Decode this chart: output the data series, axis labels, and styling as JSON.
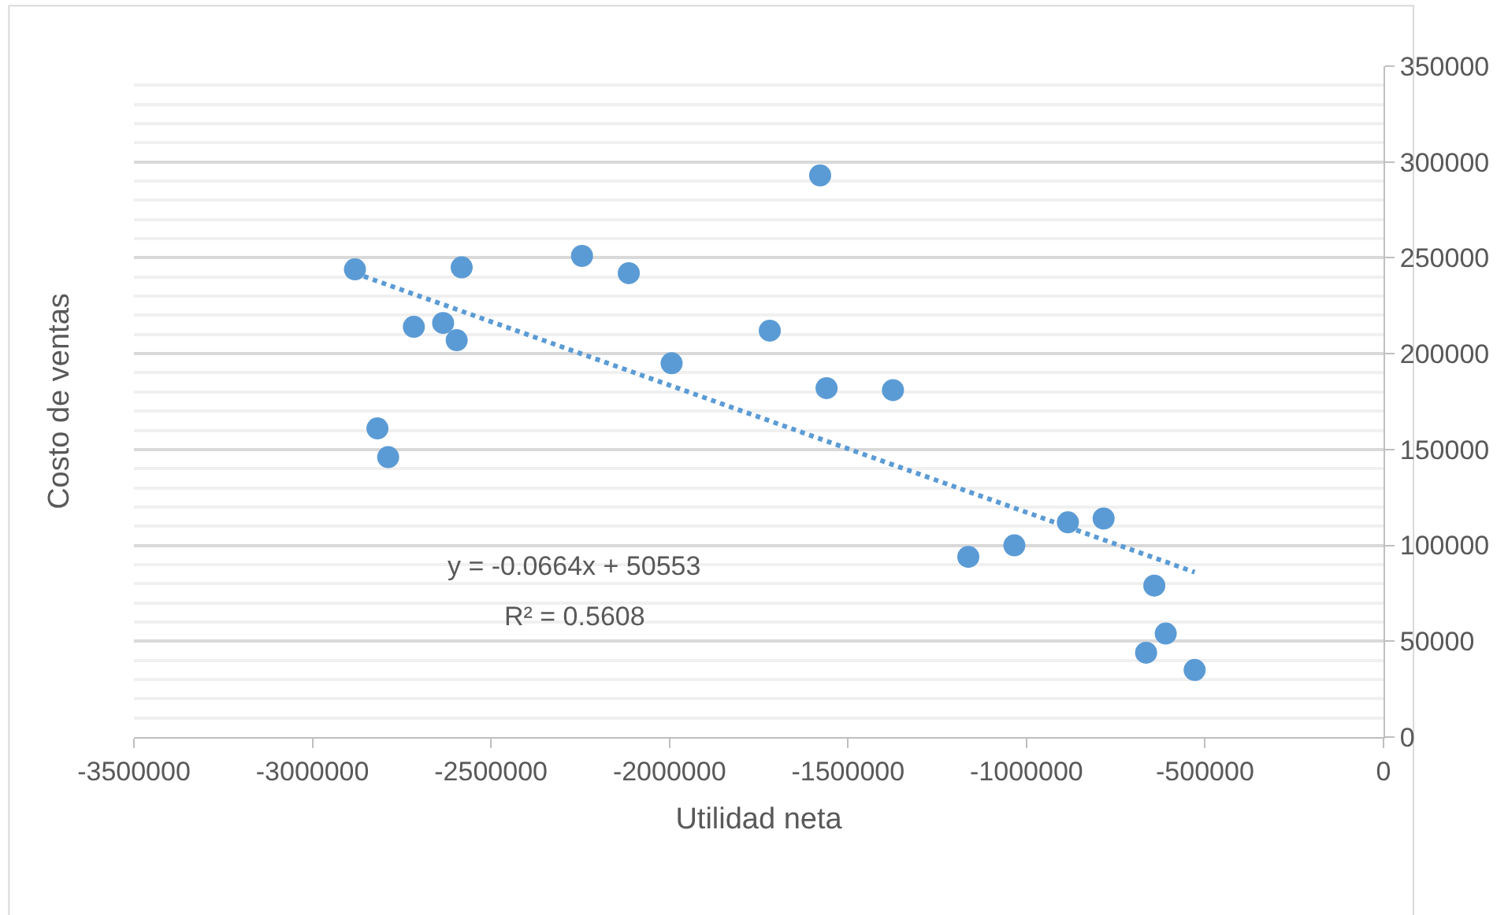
{
  "chart_data": {
    "type": "scatter",
    "xlabel": "Utilidad neta",
    "ylabel": "Costo de ventas",
    "annotations": [
      "y = -0.0664x + 50553",
      "R² = 0.5608"
    ],
    "series": [
      {
        "color": "#5b9bd5",
        "marker": "circle",
        "x": [
          -2881000,
          -2582000,
          -2245000,
          -2114000,
          -1578000,
          -2716000,
          -2634000,
          -2596000,
          -1994000,
          -1719000,
          -1560000,
          -1374000,
          -2818000,
          -2788000,
          -1163000,
          -1034000,
          -884000,
          -784000,
          -642000,
          -610000,
          -665000,
          -529000
        ],
        "values": [
          244000,
          245000,
          251000,
          242000,
          293000,
          214000,
          216000,
          207000,
          195000,
          212000,
          182000,
          181000,
          161000,
          146000,
          94000,
          100000,
          112000,
          114000,
          79000,
          54000,
          44000,
          35000
        ]
      },
      {
        "type": "line",
        "color": "#5b9bd5",
        "line_style": "dotted",
        "x": [
          -2881000,
          -529000
        ],
        "values": [
          242000,
          86000
        ]
      }
    ],
    "xlim": [
      -3500000,
      0
    ],
    "xticks": [
      -3500000,
      -3000000,
      -2500000,
      -2000000,
      -1500000,
      -1000000,
      -500000,
      0
    ],
    "ylim": [
      0,
      350000
    ],
    "yticks": [
      0,
      50000,
      100000,
      150000,
      200000,
      250000,
      300000,
      350000
    ],
    "grid": "y"
  }
}
